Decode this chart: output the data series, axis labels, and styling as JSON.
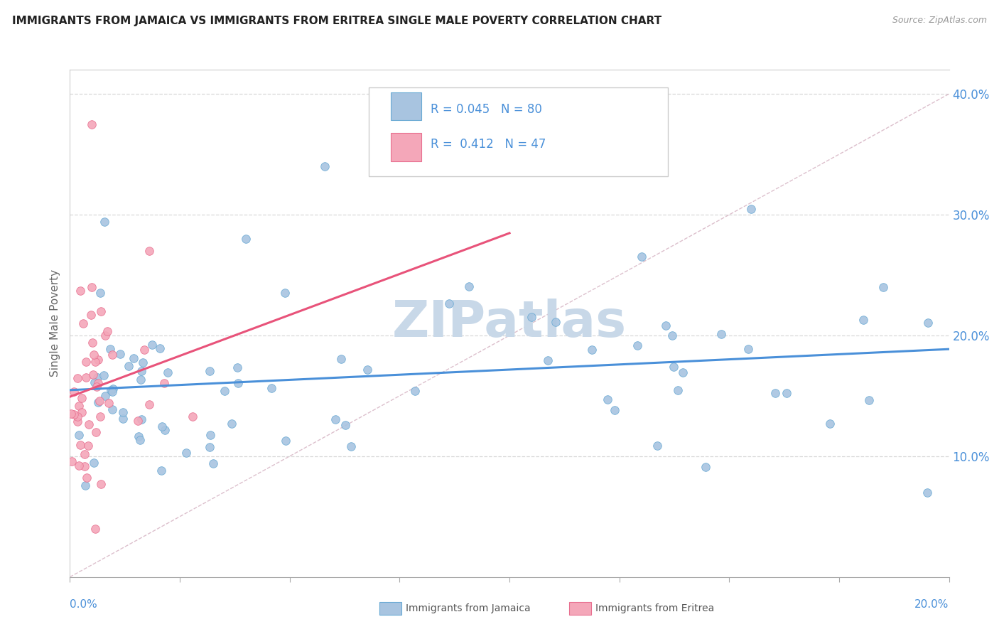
{
  "title": "IMMIGRANTS FROM JAMAICA VS IMMIGRANTS FROM ERITREA SINGLE MALE POVERTY CORRELATION CHART",
  "source": "Source: ZipAtlas.com",
  "ylabel": "Single Male Poverty",
  "legend_jamaica_R": 0.045,
  "legend_jamaica_N": 80,
  "legend_eritrea_R": 0.412,
  "legend_eritrea_N": 47,
  "jamaica_color": "#a8c4e0",
  "jamaica_edge": "#6aaad4",
  "jamaica_line": "#4a90d9",
  "eritrea_color": "#f4a7b9",
  "eritrea_edge": "#e87090",
  "eritrea_line": "#e8537a",
  "diag_color": "#d4b0c0",
  "grid_color": "#d8d8d8",
  "tick_color": "#4a90d9",
  "watermark_color": "#c8d8e8",
  "background": "#ffffff",
  "xlim": [
    0.0,
    0.2
  ],
  "ylim": [
    0.0,
    0.42
  ],
  "yticks": [
    0.1,
    0.2,
    0.3,
    0.4
  ],
  "ytick_labels": [
    "10.0%",
    "20.0%",
    "30.0%",
    "40.0%"
  ],
  "xtick_labels_show": [
    "0.0%",
    "20.0%"
  ]
}
